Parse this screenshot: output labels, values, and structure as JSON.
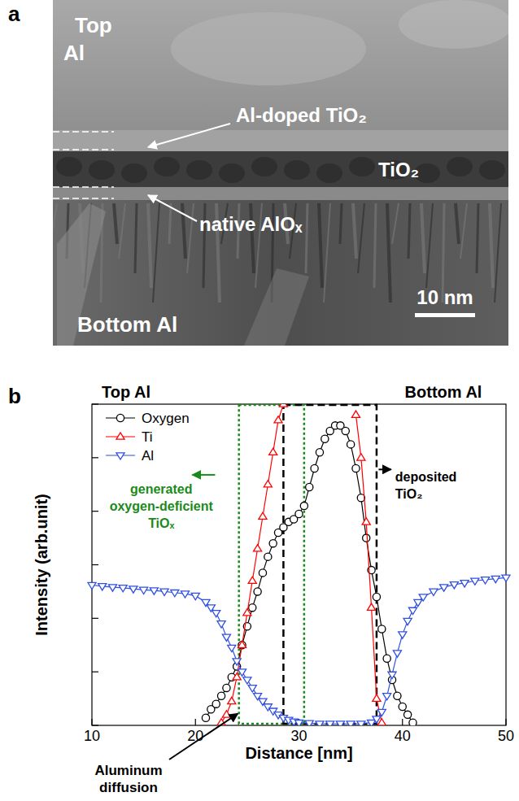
{
  "image_panel": {
    "panel_label": "a",
    "labels": [
      "Top Al",
      "Al-doped TiO₂",
      "TiO₂",
      "native AlOₓ",
      "Bottom Al"
    ],
    "scale_bar": "10 nm"
  },
  "chart_data": {
    "type": "line",
    "panel_label": "b",
    "top_labels": [
      "Top Al",
      "Bottom Al"
    ],
    "x_label": "Distance [nm]",
    "y_label": "Intensity (arb.unit)",
    "xlim": [
      10,
      50
    ],
    "xticks": [
      10,
      20,
      30,
      40,
      50
    ],
    "ylim": [
      0,
      6
    ],
    "yticks": [
      0,
      1,
      2,
      3,
      4,
      5,
      6
    ],
    "tick_labels": "x",
    "legend": "upper left",
    "series": [
      {
        "name": "Oxygen",
        "color": "#000000",
        "marker": "circle",
        "x": [
          21,
          21.5,
          22,
          22.5,
          23,
          23.5,
          24,
          24.5,
          25,
          25.5,
          26,
          26.5,
          27,
          27.5,
          28,
          28.5,
          29,
          29.5,
          30,
          30.5,
          31,
          31.5,
          32,
          32.5,
          33,
          33.5,
          34,
          34.5,
          35,
          35.5,
          36,
          36.5,
          37,
          37.5,
          38,
          38.5,
          39,
          39.5,
          40,
          40.5,
          41
        ],
        "values": [
          0.14,
          0.3,
          0.4,
          0.55,
          0.7,
          0.9,
          1.1,
          1.5,
          1.85,
          2.2,
          2.5,
          2.85,
          3.15,
          3.4,
          3.6,
          3.7,
          3.8,
          3.85,
          3.95,
          4.1,
          4.45,
          4.8,
          5.1,
          5.35,
          5.5,
          5.6,
          5.6,
          5.5,
          5.25,
          4.8,
          4.25,
          3.5,
          2.9,
          2.4,
          1.8,
          1.25,
          0.85,
          0.55,
          0.35,
          0.2,
          0.05
        ]
      },
      {
        "name": "Ti",
        "color": "#ff0000",
        "marker": "triangle-up",
        "x": [
          22.5,
          23,
          23.5,
          24,
          24.5,
          25,
          25.5,
          26,
          26.5,
          27,
          27.5,
          28,
          28.5,
          29,
          29.5,
          30,
          30.5,
          31,
          31.5,
          32,
          32.5,
          33,
          33.5,
          34,
          34.5,
          35,
          35.5,
          36,
          36.5,
          37,
          37.5,
          38
        ],
        "values": [
          0.05,
          0.2,
          0.45,
          0.9,
          1.5,
          2.1,
          2.7,
          3.3,
          3.9,
          4.5,
          5.1,
          5.7,
          6.0,
          null,
          null,
          null,
          null,
          null,
          null,
          null,
          null,
          null,
          null,
          null,
          null,
          null,
          5.8,
          5.0,
          3.8,
          2.2,
          0.5,
          0.05
        ]
      },
      {
        "name": "Al",
        "color": "#3050e0",
        "marker": "triangle-down",
        "x": [
          10,
          11,
          12,
          13,
          14,
          15,
          16,
          17,
          18,
          19,
          20,
          21,
          21.5,
          22,
          22.5,
          23,
          23.5,
          24,
          24.5,
          25,
          25.5,
          26,
          26.5,
          27,
          27.5,
          28,
          28.5,
          29,
          29.5,
          30,
          31,
          32,
          33,
          34,
          35,
          36,
          37,
          37.5,
          38,
          38.5,
          39,
          39.5,
          40,
          40.5,
          41,
          41.5,
          42,
          43,
          44,
          45,
          46,
          47,
          48,
          49,
          50
        ],
        "values": [
          2.62,
          2.6,
          2.58,
          2.57,
          2.55,
          2.53,
          2.52,
          2.5,
          2.48,
          2.46,
          2.42,
          2.3,
          2.2,
          2.1,
          1.9,
          1.65,
          1.45,
          1.2,
          1.0,
          0.85,
          0.7,
          0.55,
          0.45,
          0.35,
          0.27,
          0.2,
          0.14,
          0.1,
          0.07,
          0.05,
          0.04,
          0.03,
          0.03,
          0.03,
          0.03,
          0.03,
          0.05,
          0.12,
          0.25,
          0.55,
          0.95,
          1.35,
          1.7,
          1.95,
          2.15,
          2.3,
          2.4,
          2.5,
          2.58,
          2.63,
          2.66,
          2.7,
          2.72,
          2.74,
          2.76
        ]
      }
    ],
    "annotations": [
      {
        "text": "generated oxygen-deficient TiOₓ",
        "x_range": [
          24.2,
          30.5
        ],
        "color": "#1a8a1a",
        "line_style": "dotted"
      },
      {
        "text": "deposited TiO₂",
        "x_range": [
          28.5,
          37.5
        ],
        "color": "#000000",
        "line_style": "dashed"
      },
      {
        "text": "Aluminum diffusion"
      }
    ]
  }
}
